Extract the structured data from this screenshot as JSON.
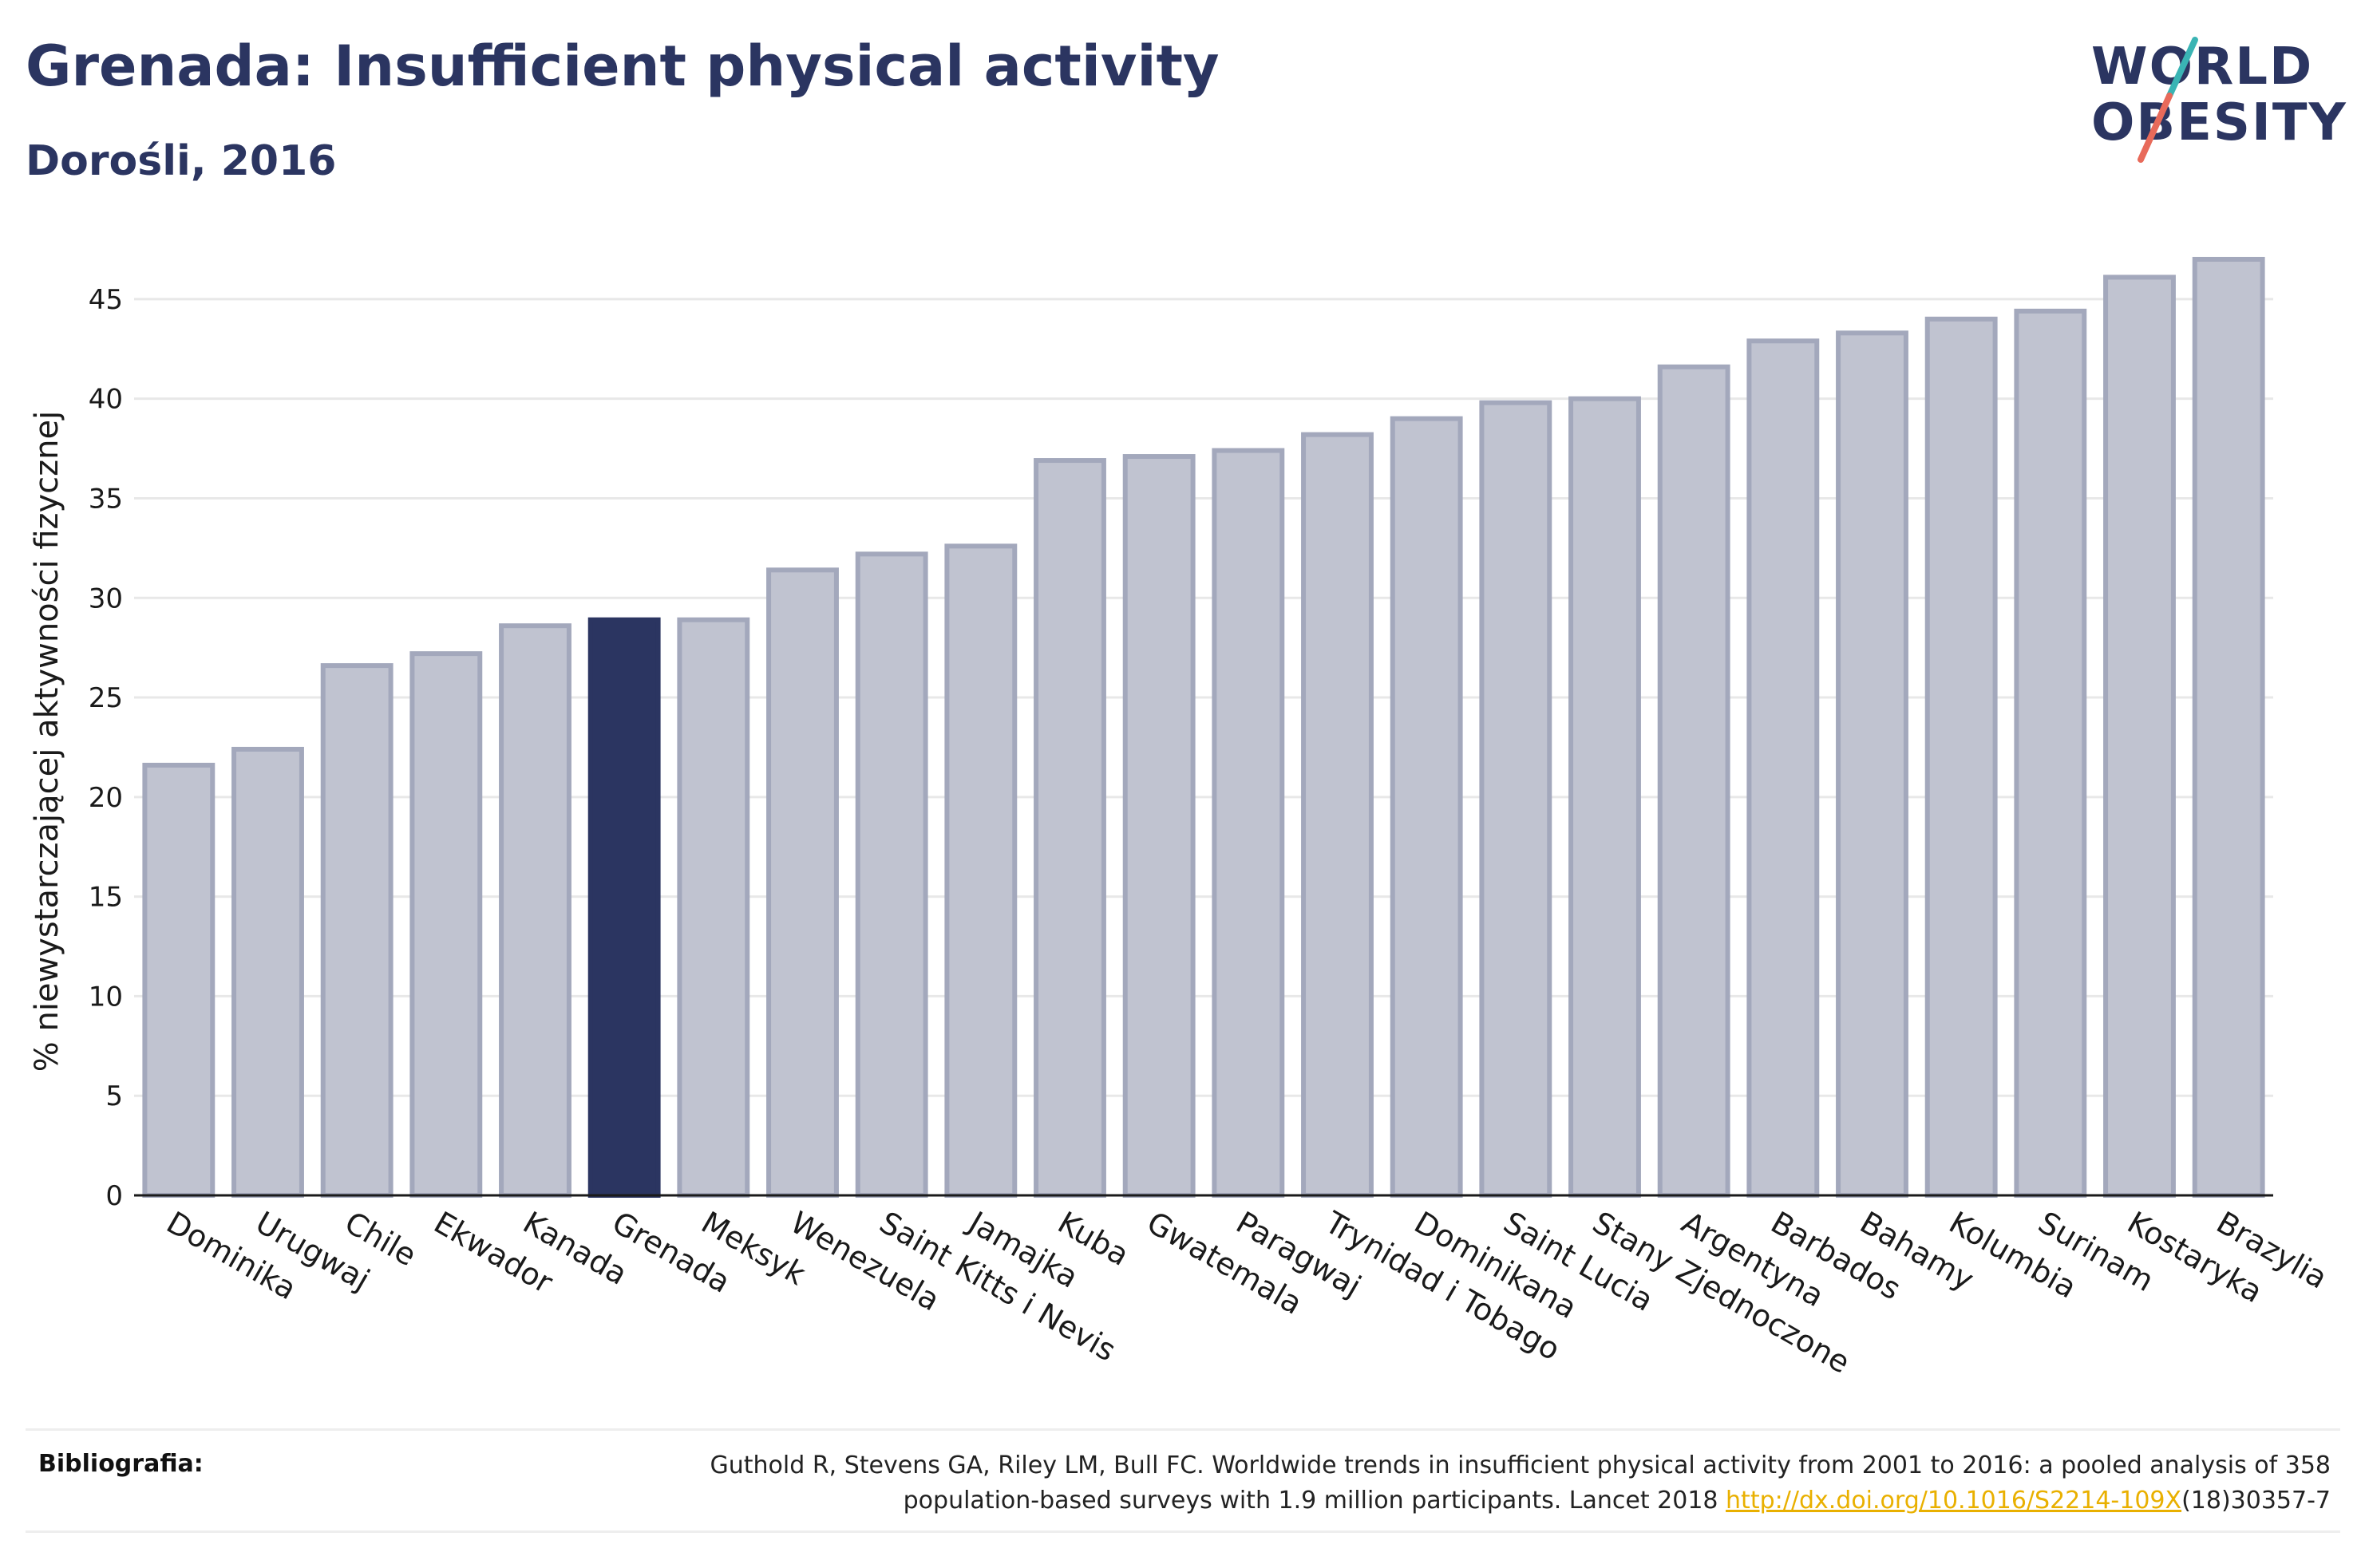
{
  "header": {
    "title": "Grenada: Insufficient physical activity",
    "subtitle": "Dorośli, 2016"
  },
  "logo": {
    "line1": "WORLD",
    "line2": "OBESITY",
    "accent_colors": [
      "#3ab4b4",
      "#e86a5a"
    ]
  },
  "colors": {
    "bar": "#c0c3d0",
    "bar_stroke": "#a3a8bc",
    "highlight": "#2b3561",
    "grid": "#e8e8e8",
    "axis": "#1a1a1a"
  },
  "chart_data": {
    "type": "bar",
    "title": "Grenada: Insufficient physical activity",
    "subtitle": "Dorośli, 2016",
    "ylabel": "% niewystarczającej aktywności fizycznej",
    "xlabel": "",
    "ylim": [
      0,
      48
    ],
    "yticks": [
      0,
      5,
      10,
      15,
      20,
      25,
      30,
      35,
      40,
      45
    ],
    "grid": true,
    "highlight": "Grenada",
    "categories": [
      "Dominika",
      "Urugwaj",
      "Chile",
      "Ekwador",
      "Kanada",
      "Grenada",
      "Meksyk",
      "Wenezuela",
      "Saint Kitts i Nevis",
      "Jamajka",
      "Kuba",
      "Gwatemala",
      "Paragwaj",
      "Trynidad i Tobago",
      "Dominikana",
      "Saint Lucia",
      "Stany Zjednoczone",
      "Argentyna",
      "Barbados",
      "Bahamy",
      "Kolumbia",
      "Surinam",
      "Kostaryka",
      "Brazylia"
    ],
    "values": [
      21.6,
      22.4,
      26.6,
      27.2,
      28.6,
      28.9,
      28.9,
      31.4,
      32.2,
      32.6,
      36.9,
      37.1,
      37.4,
      38.2,
      39.0,
      39.8,
      40.0,
      41.6,
      42.9,
      43.3,
      44.0,
      44.4,
      46.1,
      47.0
    ]
  },
  "footer": {
    "label": "Bibliografia:",
    "text_line1": "Guthold R, Stevens GA, Riley LM, Bull FC. Worldwide trends in insufficient physical activity from 2001 to 2016: a pooled analysis of 358",
    "text_line2_before": "population-based surveys with 1.9 million participants. Lancet 2018 ",
    "link": "http://dx.doi.org/10.1016/S2214-109X",
    "text_line2_after": "(18)30357-7"
  }
}
